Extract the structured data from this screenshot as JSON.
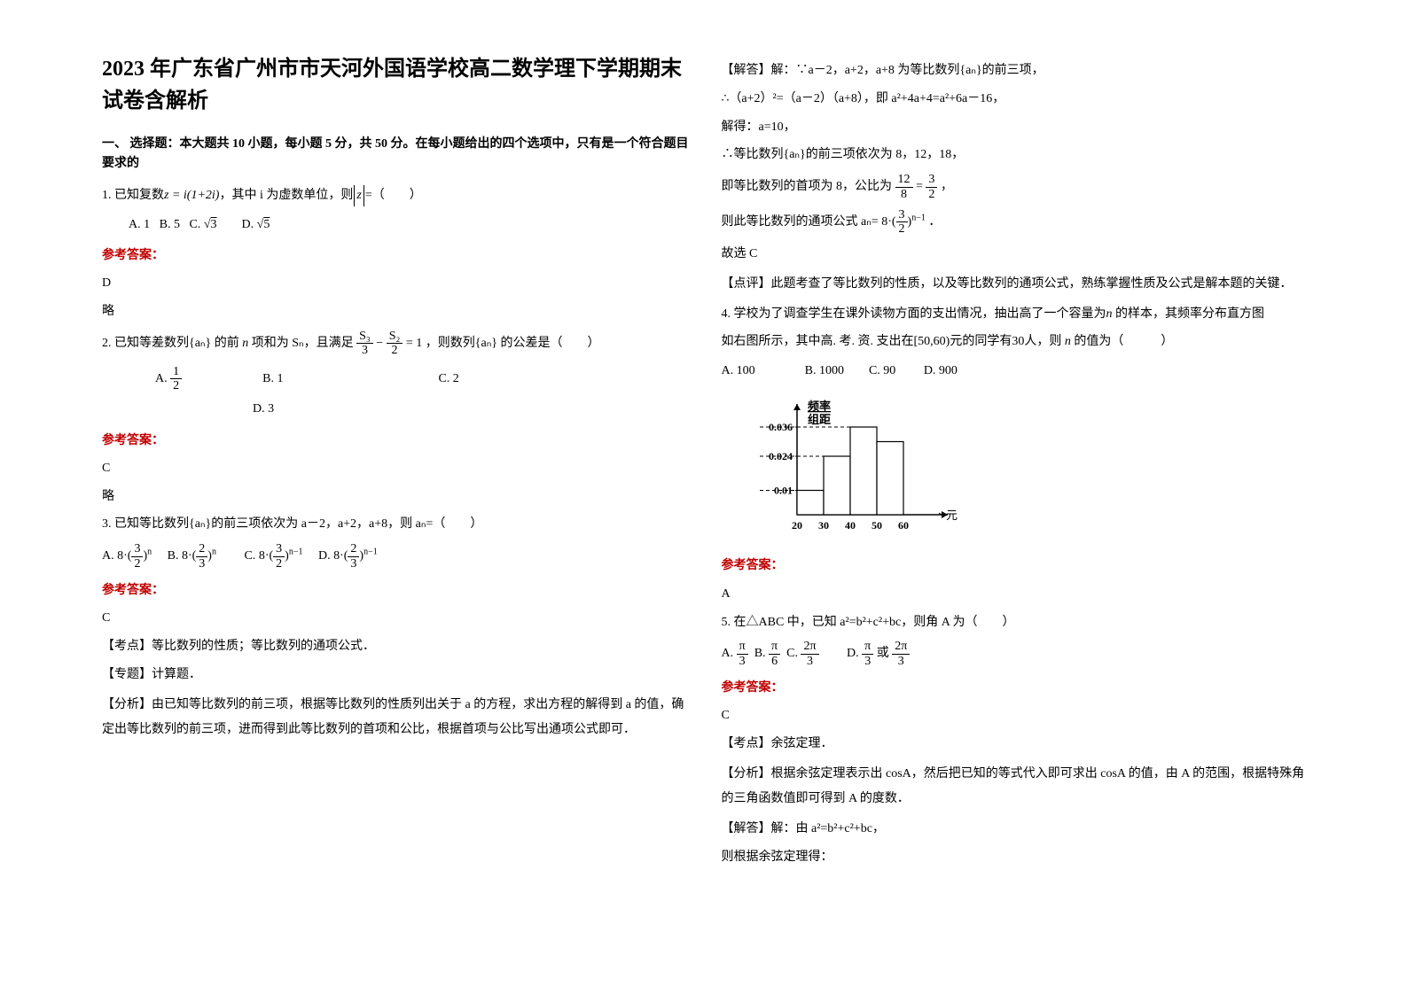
{
  "title": "2023 年广东省广州市市天河外国语学校高二数学理下学期期末试卷含解析",
  "section1": "一、 选择题：本大题共 10 小题，每小题 5 分，共 50 分。在每小题给出的四个选项中，只有是一个符合题目要求的",
  "q1": {
    "stem_prefix": "1. 已知复数",
    "stem_expr": "z = i(1+2i)",
    "stem_mid": "，其中 i 为虚数单位，则",
    "stem_expr2": "z",
    "stem_suffix": "=（　　）",
    "optA": "A.  1",
    "optB": "B.  5",
    "optC_pre": "C.  ",
    "optC_val": "3",
    "optD_pre": "D.  ",
    "optD_val": "5",
    "ans": "D",
    "note": "略"
  },
  "q2": {
    "stem_a": "2. 已知等差数列",
    "stem_seq": "{aₙ}",
    "stem_b": " 的前 ",
    "stem_n": "n",
    "stem_c": " 项和为 ",
    "stem_S": "Sₙ",
    "stem_d": "，且满足 ",
    "frac1_num": "S₃",
    "frac1_den": "3",
    "minus": " − ",
    "frac2_num": "S₂",
    "frac2_den": "2",
    "eq": " = 1",
    "stem_e": "，则数列",
    "stem_f": " 的公差是（　　）",
    "optA_num": "1",
    "optA_den": "2",
    "optA": "A.  ",
    "optB": "B.  1",
    "optC": "C.  2",
    "optD": "D.  3",
    "ans": "C",
    "note": "略"
  },
  "q3": {
    "stem": "3. 已知等比数列{aₙ}的前三项依次为 a－2，a+2，a+8，则 aₙ=（　　）",
    "optA_pre": "A.  ",
    "optB_pre": "B.  ",
    "optC_pre": "C.  ",
    "optD_pre": "D.  ",
    "base": "8·(",
    "f32_num": "3",
    "f32_den": "2",
    "f23_num": "2",
    "f23_den": "3",
    "close": ")",
    "exp_n": "n",
    "exp_nm1": "n−1",
    "ans": "C",
    "kp_label": "【考点】",
    "kp": "等比数列的性质；等比数列的通项公式．",
    "zt_label": "【专题】",
    "zt": "计算题．",
    "fx_label": "【分析】",
    "fx": "由已知等比数列的前三项，根据等比数列的性质列出关于 a 的方程，求出方程的解得到 a 的值，确定出等比数列的前三项，进而得到此等比数列的首项和公比，根据首项与公比写出通项公式即可．",
    "jd_label": "【解答】",
    "jd1": "解：∵a－2，a+2，a+8 为等比数列{aₙ}的前三项，",
    "jd2": "∴（a+2）²=（a－2）（a+8），即 a²+4a+4=a²+6a－16，",
    "jd3": "解得：a=10，",
    "jd4": "∴等比数列{aₙ}的前三项依次为 8，12，18，",
    "jd5a": "即等比数列的首项为 8，公比为 ",
    "jd5_f1n": "12",
    "jd5_f1d": "8",
    "jd5_eq": "=",
    "jd5_f2n": "3",
    "jd5_f2d": "2",
    "jd5b": "，",
    "jd6a": "则此等比数列的通项公式 aₙ= ",
    "jd6b": "．",
    "jd7": "故选 C",
    "dp_label": "【点评】",
    "dp": "此题考查了等比数列的性质，以及等比数列的通项公式，熟练掌握性质及公式是解本题的关键．"
  },
  "q4": {
    "stem1": "4. 学校为了调查学生在课外读物方面的支出情况，抽出高了一个容量为",
    "var_n1": "n",
    "stem1b": " 的样本，其频率分布直方图",
    "stem2a": "如右图所示，其中高. 考. 资. 支出在",
    "interval": "[50,60)",
    "stem2b": "元的同学有",
    "val30": "30",
    "stem2c": "人，则 ",
    "var_n2": "n",
    "stem2d": " 的值为（　　　）",
    "optA": "A.  100",
    "optB": "B.  1000",
    "optC": "C.  90",
    "optD": "D.  900",
    "chart": {
      "y_label_top": "频率",
      "y_label_bot": "组距",
      "y_ticks": [
        "0.036",
        "0.024",
        "0.01"
      ],
      "x_ticks": [
        "20",
        "30",
        "40",
        "50",
        "60"
      ],
      "x_unit": "元",
      "bars": [
        {
          "x": 20,
          "h": 0.01
        },
        {
          "x": 30,
          "h": 0.024
        },
        {
          "x": 40,
          "h": 0.036
        },
        {
          "x": 50,
          "h": 0.03
        }
      ],
      "colors": {
        "axis": "#000000",
        "bar_fill": "#ffffff",
        "bar_stroke": "#000000",
        "dash": "#000000"
      }
    },
    "ans": "A"
  },
  "q5": {
    "stem": "5. 在△ABC 中，已知 a²=b²+c²+bc，则角 A 为（　　）",
    "optA_pre": "A.  ",
    "optB_pre": "B.  ",
    "optC_pre": "C.  ",
    "optD_pre": "D.  ",
    "pi": "π",
    "d3": "3",
    "d6": "6",
    "n2pi": "2π",
    "or": " 或 ",
    "ans": "C",
    "kp_label": "【考点】",
    "kp": "余弦定理．",
    "fx_label": "【分析】",
    "fx": "根据余弦定理表示出 cosA，然后把已知的等式代入即可求出 cosA 的值，由 A 的范围，根据特殊角的三角函数值即可得到 A 的度数．",
    "jd_label": "【解答】",
    "jd1": "解：由 a²=b²+c²+bc，",
    "jd2": "则根据余弦定理得："
  },
  "labels": {
    "answer": "参考答案："
  }
}
